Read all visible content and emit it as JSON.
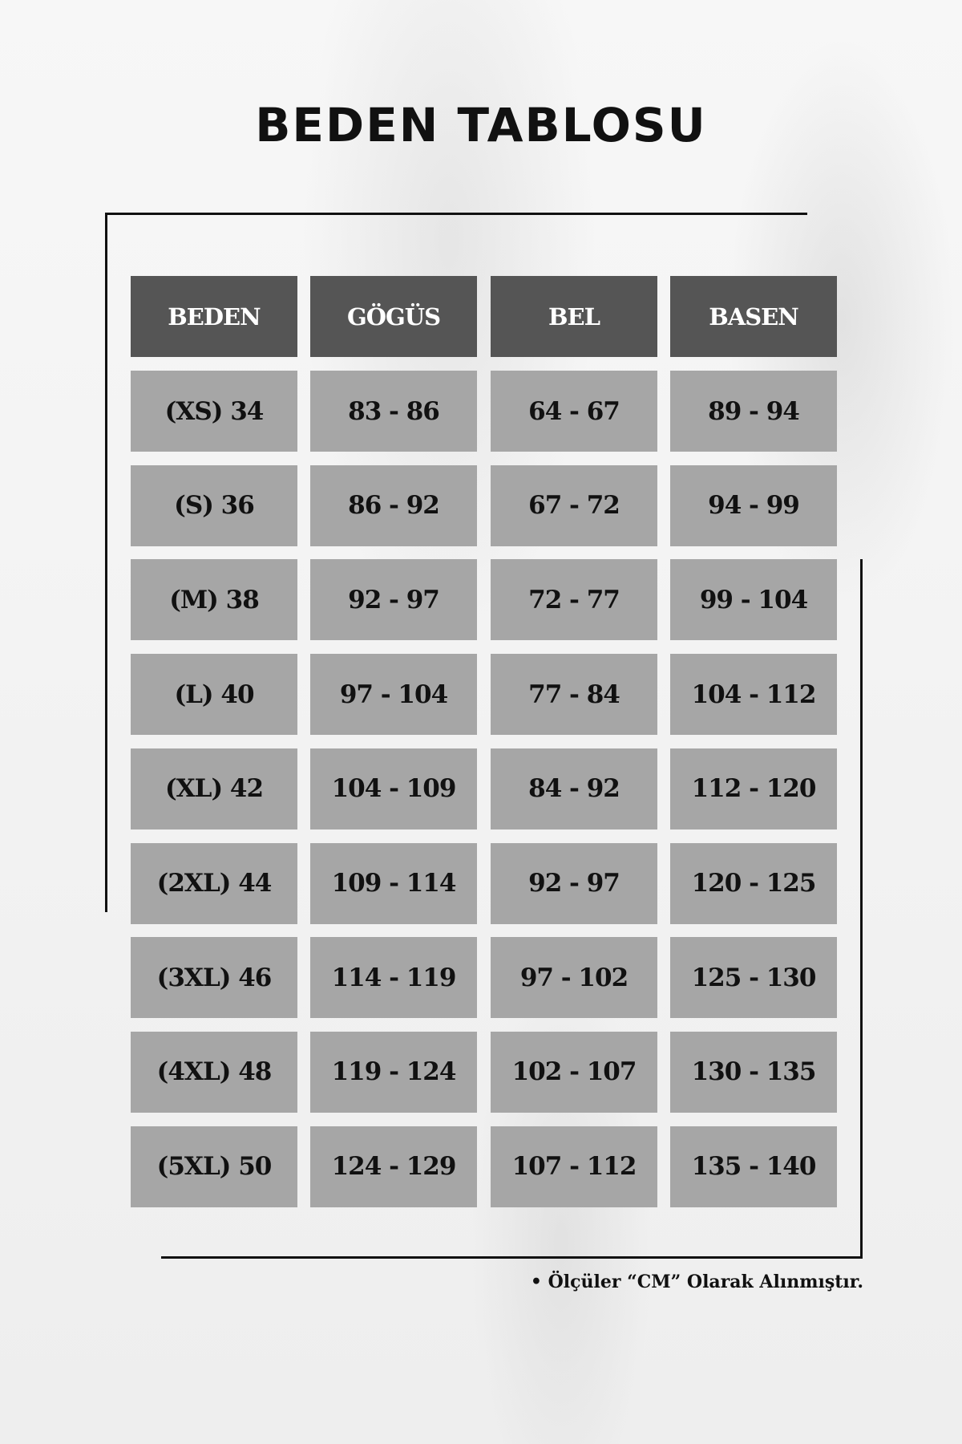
{
  "title": "BEDEN TABLOSU",
  "table": {
    "headers": [
      "BEDEN",
      "GÖGÜS",
      "BEL",
      "BASEN"
    ],
    "rows": [
      [
        "(XS) 34",
        "83 - 86",
        "64 - 67",
        "89 - 94"
      ],
      [
        "(S) 36",
        "86 - 92",
        "67 - 72",
        "94 - 99"
      ],
      [
        "(M) 38",
        "92 - 97",
        "72 - 77",
        "99 - 104"
      ],
      [
        "(L) 40",
        "97 - 104",
        "77 - 84",
        "104 - 112"
      ],
      [
        "(XL) 42",
        "104 - 109",
        "84 - 92",
        "112 - 120"
      ],
      [
        "(2XL) 44",
        "109 - 114",
        "92 - 97",
        "120 - 125"
      ],
      [
        "(3XL) 46",
        "114 - 119",
        "97 - 102",
        "125 - 130"
      ],
      [
        "(4XL) 48",
        "119 - 124",
        "102 - 107",
        "130 - 135"
      ],
      [
        "(5XL) 50",
        "124 - 129",
        "107 - 112",
        "135 - 140"
      ]
    ]
  },
  "footnote": "• Ölçüler “CM” Olarak Alınmıştır.",
  "colors": {
    "header_bg": "#555555",
    "cell_bg": "#a6a6a6",
    "frame": "#111111"
  }
}
